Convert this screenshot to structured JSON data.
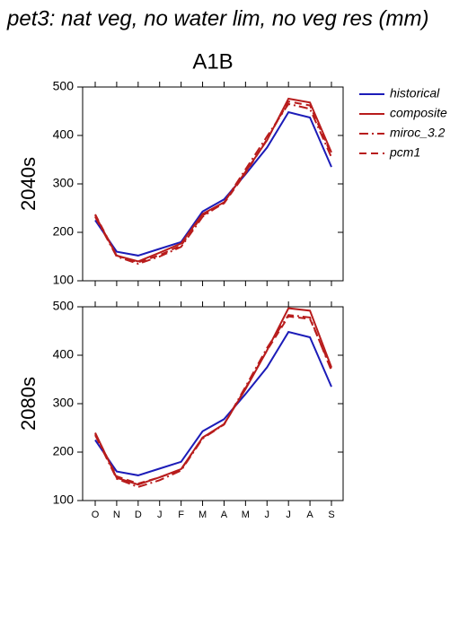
{
  "title": "pet3: nat veg, no water lim, no veg res (mm)",
  "chart_data": [
    {
      "type": "line",
      "title": "A1B",
      "ylabel": "2040s",
      "ylim": [
        100,
        500
      ],
      "yticks": [
        100,
        200,
        300,
        400,
        500
      ],
      "series": [
        {
          "name": "historical",
          "color": "#1c1cb8",
          "dash": "none",
          "values": [
            225,
            160,
            152,
            166,
            180,
            243,
            268,
            320,
            375,
            448,
            437,
            335
          ]
        },
        {
          "name": "composite",
          "color": "#b81c1c",
          "dash": "none",
          "values": [
            235,
            152,
            140,
            158,
            177,
            238,
            262,
            325,
            390,
            476,
            468,
            365
          ]
        },
        {
          "name": "miroc_3.2",
          "color": "#b81c1c",
          "dash": "10,4,2,4",
          "values": [
            232,
            150,
            135,
            150,
            170,
            232,
            262,
            330,
            398,
            465,
            455,
            355
          ]
        },
        {
          "name": "pcm1",
          "color": "#b81c1c",
          "dash": "8,5",
          "values": [
            237,
            152,
            138,
            153,
            173,
            235,
            260,
            322,
            392,
            470,
            462,
            360
          ]
        }
      ]
    },
    {
      "type": "line",
      "ylabel": "2080s",
      "categories": [
        "O",
        "N",
        "D",
        "J",
        "F",
        "M",
        "A",
        "M",
        "J",
        "J",
        "A",
        "S"
      ],
      "ylim": [
        100,
        500
      ],
      "yticks": [
        100,
        200,
        300,
        400,
        500
      ],
      "series": [
        {
          "color": "#1c1cb8",
          "dash": "none",
          "values": [
            225,
            160,
            152,
            166,
            180,
            243,
            268,
            320,
            375,
            448,
            437,
            335
          ]
        },
        {
          "color": "#b81c1c",
          "dash": "none",
          "values": [
            240,
            147,
            133,
            148,
            165,
            230,
            258,
            330,
            410,
            497,
            492,
            375
          ]
        },
        {
          "color": "#b81c1c",
          "dash": "10,4,2,4",
          "values": [
            235,
            145,
            128,
            142,
            162,
            228,
            257,
            335,
            415,
            483,
            478,
            368
          ]
        },
        {
          "color": "#b81c1c",
          "dash": "8,5",
          "values": [
            238,
            150,
            135,
            148,
            164,
            230,
            257,
            332,
            410,
            480,
            475,
            372
          ]
        }
      ]
    }
  ]
}
